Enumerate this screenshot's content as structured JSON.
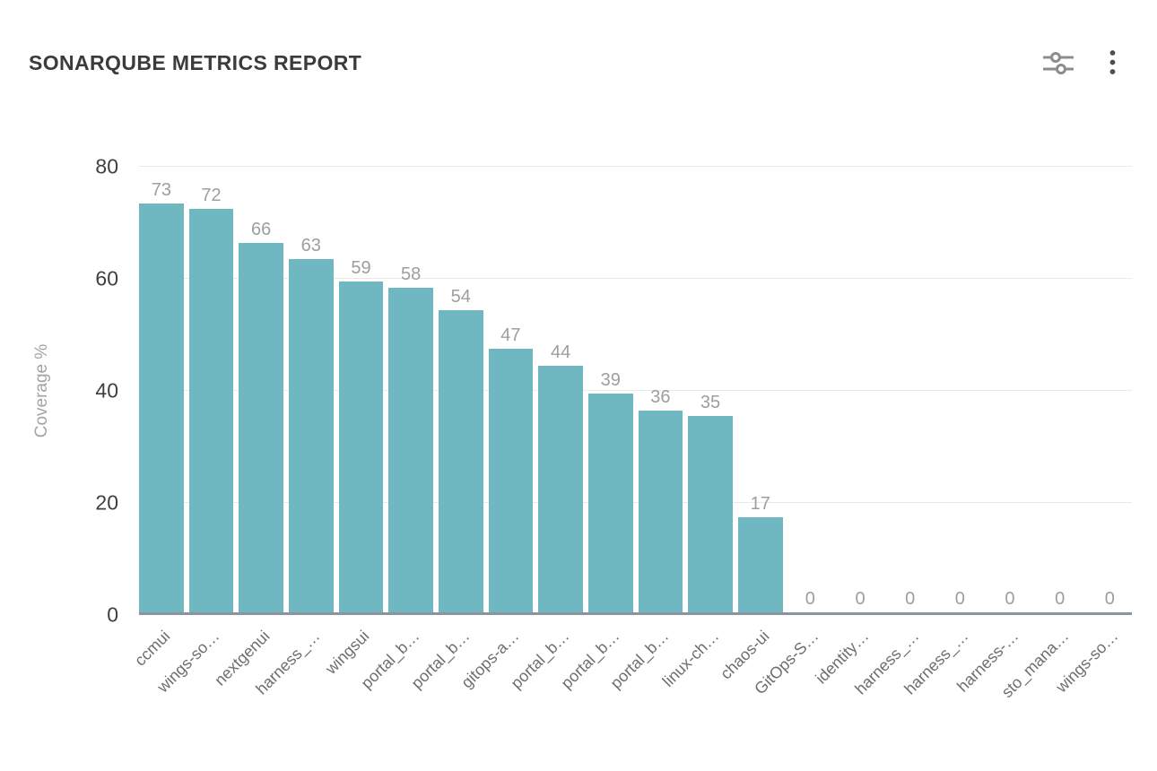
{
  "header": {
    "title": "SONARQUBE METRICS REPORT",
    "actions": [
      {
        "label": "chart settings",
        "icon": "sliders-icon"
      },
      {
        "label": "more options",
        "icon": "kebab-menu-icon"
      }
    ]
  },
  "chart_data": {
    "type": "bar",
    "title": "SONARQUBE METRICS REPORT",
    "xlabel": "",
    "ylabel": "Coverage %",
    "ylim": [
      0,
      80
    ],
    "yticks": [
      0,
      20,
      40,
      60,
      80
    ],
    "grid": true,
    "legend": false,
    "categories": [
      "ccmui",
      "wings-so…",
      "nextgenui",
      "harness_…",
      "wingsui",
      "portal_b…",
      "portal_b…",
      "gitops-a…",
      "portal_b…",
      "portal_b…",
      "portal_b…",
      "linux-ch…",
      "chaos-ui",
      "GitOps-S…",
      "identity…",
      "harness_…",
      "harness_…",
      "harness-…",
      "sto_mana…",
      "wings-so…"
    ],
    "values": [
      73,
      72,
      66,
      63,
      59,
      58,
      54,
      47,
      44,
      39,
      36,
      35,
      17,
      0,
      0,
      0,
      0,
      0,
      0,
      0
    ]
  },
  "colors": {
    "bar": "#6fb8c1",
    "gridline": "#e9e9e9",
    "axis_line": "#8b92a0",
    "title_text": "#3b3b3b",
    "ytick_text": "#3f3f3f",
    "value_label_text": "#9e9e9e",
    "xtick_text": "#6e6e6e",
    "ylabel_text": "#a3a3a3",
    "background": "#ffffff"
  }
}
